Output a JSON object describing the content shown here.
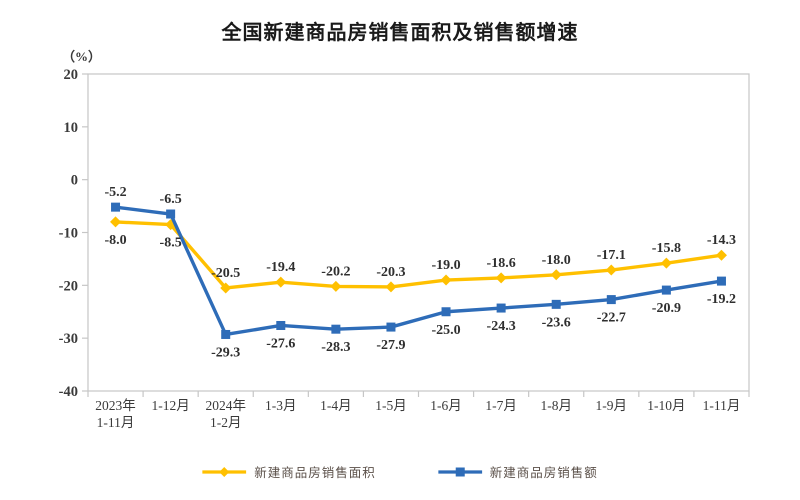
{
  "page": {
    "background_color": "#ffffff"
  },
  "chart_data": {
    "type": "line",
    "title": "全国新建商品房销售面积及销售额增速",
    "ylabel": "（%）",
    "xlabel": "",
    "ylim": [
      -40,
      20
    ],
    "yticks": [
      20,
      10,
      0,
      -10,
      -20,
      -30,
      -40
    ],
    "grid": false,
    "legend_position": "bottom",
    "plot_border_color": "#c6c6c6",
    "axis_text_color": "#3a3a3a",
    "data_label_color": "#2f2f2f",
    "categories": [
      "2023年\n1-11月",
      "1-12月",
      "2024年\n1-2月",
      "1-3月",
      "1-4月",
      "1-5月",
      "1-6月",
      "1-7月",
      "1-8月",
      "1-9月",
      "1-10月",
      "1-11月"
    ],
    "series": [
      {
        "name": "新建商品房销售面积",
        "color": "#FFC000",
        "marker": "diamond",
        "values": [
          -8.0,
          -8.5,
          -20.5,
          -19.4,
          -20.2,
          -20.3,
          -19.0,
          -18.6,
          -18.0,
          -17.1,
          -15.8,
          -14.3
        ],
        "label_side": [
          "below",
          "below",
          "above",
          "above",
          "above",
          "above",
          "above",
          "above",
          "above",
          "above",
          "above",
          "above"
        ]
      },
      {
        "name": "新建商品房销售额",
        "color": "#2E6CB8",
        "marker": "square",
        "values": [
          -5.2,
          -6.5,
          -29.3,
          -27.6,
          -28.3,
          -27.9,
          -25.0,
          -24.3,
          -23.6,
          -22.7,
          -20.9,
          -19.2
        ],
        "label_side": [
          "above",
          "above",
          "below",
          "below",
          "below",
          "below",
          "below",
          "below",
          "below",
          "below",
          "below",
          "below"
        ]
      }
    ]
  }
}
